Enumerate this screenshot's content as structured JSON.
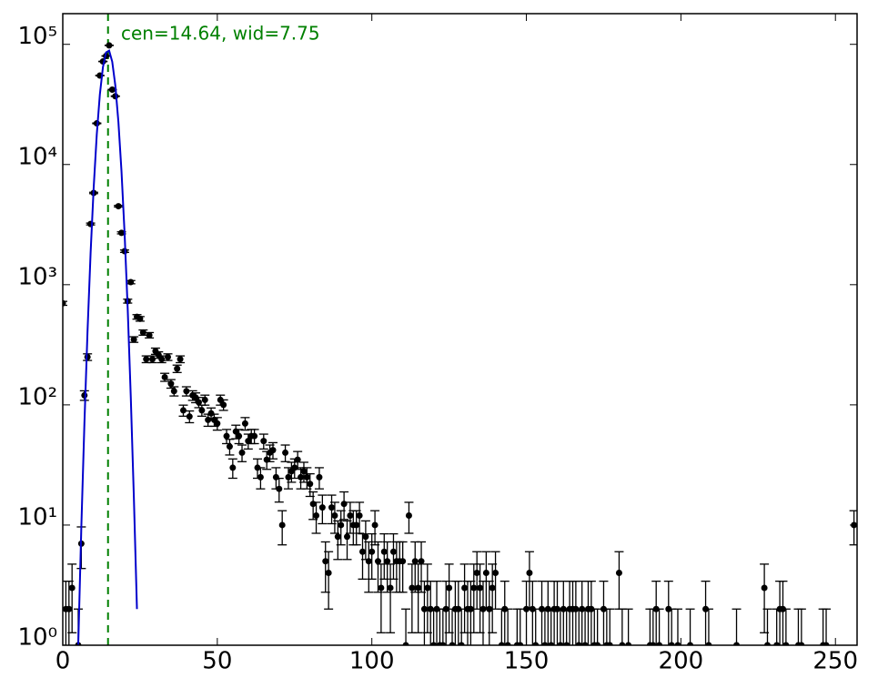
{
  "chart_data": {
    "type": "errorbar",
    "log_y": true,
    "xlim": [
      0,
      257
    ],
    "ylim": [
      1,
      180000
    ],
    "xticks": [
      0,
      50,
      100,
      150,
      200,
      250
    ],
    "yticks": [
      {
        "value": 1,
        "label": "10⁰"
      },
      {
        "value": 10,
        "label": "10¹"
      },
      {
        "value": 100,
        "label": "10²"
      },
      {
        "value": 1000,
        "label": "10³"
      },
      {
        "value": 10000,
        "label": "10⁴"
      },
      {
        "value": 100000,
        "label": "10⁵"
      }
    ],
    "annotation": "cen=14.64, wid=7.75",
    "vline": {
      "x": 14.64,
      "color": "#008000"
    },
    "series": [
      {
        "type": "errorbar",
        "color": "#000000",
        "x": [
          0,
          1,
          2,
          3,
          5,
          6,
          7,
          8,
          9,
          10,
          11,
          12,
          13,
          14,
          15,
          16,
          17,
          18,
          19,
          20,
          21,
          22,
          23,
          24,
          25,
          26,
          27,
          28,
          29,
          30,
          31,
          32,
          33,
          34,
          35,
          36,
          37,
          38,
          39,
          40,
          41,
          42,
          43,
          44,
          45,
          46,
          47,
          48,
          49,
          50,
          51,
          52,
          53,
          54,
          55,
          56,
          57,
          58,
          59,
          60,
          61,
          62,
          63,
          64,
          65,
          66,
          67,
          68,
          69,
          70,
          71,
          72,
          73,
          74,
          75,
          76,
          77,
          78,
          79,
          80,
          81,
          82,
          83,
          84,
          85,
          86,
          87,
          88,
          89,
          90,
          91,
          92,
          93,
          94,
          95,
          96,
          97,
          98,
          99,
          100,
          101,
          102,
          103,
          104,
          105,
          106,
          107,
          108,
          109,
          110,
          111,
          112,
          113,
          114,
          115,
          116,
          117,
          118,
          119,
          120,
          121,
          122,
          123,
          124,
          125,
          126,
          127,
          128,
          129,
          130,
          131,
          132,
          133,
          134,
          135,
          136,
          137,
          138,
          139,
          140,
          142,
          143,
          144,
          147,
          148,
          150,
          151,
          152,
          153,
          155,
          156,
          157,
          158,
          159,
          160,
          161,
          162,
          163,
          164,
          165,
          166,
          167,
          168,
          169,
          170,
          171,
          172,
          173,
          175,
          176,
          177,
          180,
          181,
          183,
          190,
          191,
          192,
          193,
          196,
          197,
          199,
          203,
          208,
          209,
          218,
          227,
          228,
          231,
          232,
          233,
          234,
          238,
          239,
          246,
          247,
          256
        ],
        "values": [
          700,
          2,
          2,
          3,
          1,
          7,
          120,
          250,
          3200,
          5800,
          22000,
          55000,
          72000,
          80000,
          98000,
          42000,
          37000,
          4500,
          2700,
          1900,
          730,
          1050,
          350,
          540,
          520,
          400,
          240,
          380,
          240,
          280,
          260,
          240,
          170,
          250,
          150,
          130,
          200,
          240,
          90,
          130,
          80,
          120,
          115,
          105,
          90,
          110,
          75,
          85,
          75,
          70,
          110,
          100,
          55,
          45,
          30,
          60,
          55,
          40,
          70,
          50,
          55,
          55,
          30,
          25,
          50,
          35,
          40,
          42,
          25,
          20,
          10,
          40,
          25,
          28,
          30,
          35,
          25,
          28,
          25,
          22,
          15,
          12,
          25,
          14,
          5,
          4,
          14,
          12,
          8,
          10,
          15,
          8,
          12,
          10,
          10,
          12,
          6,
          8,
          5,
          6,
          10,
          5,
          3,
          6,
          5,
          3,
          6,
          5,
          5,
          5,
          1,
          12,
          3,
          5,
          3,
          5,
          2,
          3,
          2,
          1,
          2,
          1,
          1,
          2,
          3,
          1,
          2,
          2,
          1,
          3,
          2,
          2,
          3,
          4,
          3,
          2,
          4,
          2,
          3,
          4,
          1,
          2,
          1,
          1,
          1,
          2,
          4,
          2,
          1,
          2,
          1,
          2,
          1,
          2,
          2,
          1,
          2,
          1,
          2,
          2,
          2,
          1,
          2,
          1,
          2,
          2,
          1,
          1,
          2,
          1,
          1,
          4,
          1,
          1,
          1,
          1,
          2,
          1,
          2,
          1,
          1,
          1,
          2,
          1,
          1,
          3,
          1,
          1,
          2,
          2,
          1,
          1,
          1,
          1,
          1,
          10
        ],
        "errors": [
          26.5,
          1.41,
          1.41,
          1.73,
          1,
          2.65,
          10.95,
          15.81,
          56.6,
          76.2,
          148.3,
          234.5,
          268.3,
          282.8,
          313.0,
          204.9,
          192.4,
          67.1,
          52.0,
          43.6,
          27.0,
          32.4,
          18.7,
          23.2,
          22.8,
          20,
          15.49,
          19.49,
          15.49,
          16.73,
          16.12,
          15.49,
          13.04,
          15.81,
          12.25,
          11.4,
          14.14,
          15.49,
          9.49,
          11.4,
          8.94,
          10.95,
          10.72,
          10.25,
          9.49,
          10.49,
          8.66,
          9.22,
          8.66,
          8.37,
          10.49,
          10,
          7.42,
          6.71,
          5.48,
          7.75,
          7.42,
          6.32,
          8.37,
          7.07,
          7.42,
          7.42,
          5.48,
          5,
          7.07,
          5.92,
          6.32,
          6.48,
          5,
          4.47,
          3.16,
          6.32,
          5,
          5.29,
          5.48,
          5.92,
          5,
          5.29,
          5,
          4.69,
          3.87,
          3.46,
          5,
          3.74,
          2.24,
          2,
          3.74,
          3.46,
          2.83,
          3.16,
          3.87,
          2.83,
          3.46,
          3.16,
          3.16,
          3.46,
          2.45,
          2.83,
          2.24,
          2.45,
          3.16,
          2.24,
          1.73,
          2.45,
          2.24,
          1.73,
          2.45,
          2.24,
          2.24,
          2.24,
          1,
          3.46,
          1.73,
          2.24,
          1.73,
          2.24,
          1.41,
          1.73,
          1.41,
          1,
          1.41,
          1,
          1,
          1.41,
          1.73,
          1,
          1.41,
          1.41,
          1,
          1.73,
          1.41,
          1.41,
          1.73,
          2,
          1.73,
          1.41,
          2,
          1.41,
          1.73,
          2,
          1,
          1.41,
          1,
          1,
          1,
          1.41,
          2,
          1.41,
          1,
          1.41,
          1,
          1.41,
          1,
          1.41,
          1.41,
          1,
          1.41,
          1,
          1.41,
          1.41,
          1.41,
          1,
          1.41,
          1,
          1.41,
          1.41,
          1,
          1,
          1.41,
          1,
          1,
          2,
          1,
          1,
          1,
          1,
          1.41,
          1,
          1.41,
          1,
          1,
          1,
          1.41,
          1,
          1,
          1.73,
          1,
          1,
          1.41,
          1.41,
          1,
          1,
          1,
          1,
          1,
          3.16
        ]
      },
      {
        "type": "line",
        "color": "#0000cc",
        "x": [
          5,
          6,
          7,
          8,
          9,
          10,
          11,
          12,
          13,
          14,
          15,
          16,
          17,
          18,
          19,
          20,
          21,
          22,
          23,
          24
        ],
        "values": [
          1,
          9.6,
          70,
          405,
          1830,
          6440,
          17800,
          38300,
          64700,
          85600,
          88600,
          71700,
          45500,
          22600,
          8760,
          2670,
          638,
          117,
          17,
          2
        ]
      }
    ]
  }
}
